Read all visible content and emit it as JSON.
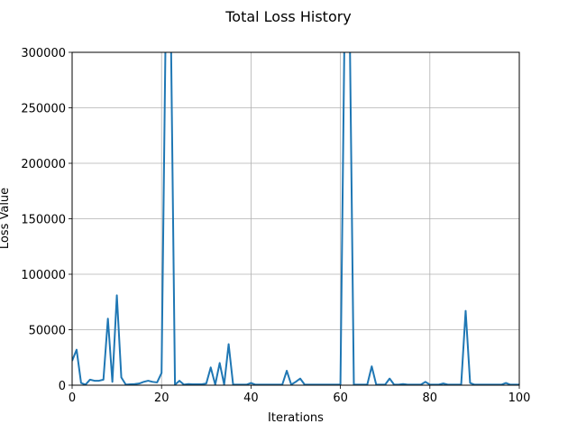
{
  "chart_data": {
    "type": "line",
    "title": "Total Loss History",
    "xlabel": "Iterations",
    "ylabel": "Loss Value",
    "xlim": [
      0,
      100
    ],
    "ylim": [
      0,
      300000
    ],
    "x_ticks": [
      0,
      20,
      40,
      60,
      80,
      100
    ],
    "x_tick_labels": [
      "0",
      "20",
      "40",
      "60",
      "80",
      "100"
    ],
    "y_ticks": [
      0,
      50000,
      100000,
      150000,
      200000,
      250000,
      300000
    ],
    "y_tick_labels": [
      "0",
      "50000",
      "100000",
      "150000",
      "200000",
      "250000",
      "300000"
    ],
    "grid": true,
    "series": [
      {
        "color": "#1f77b4",
        "x": [
          0,
          1,
          2,
          3,
          4,
          5,
          6,
          7,
          8,
          9,
          10,
          11,
          12,
          13,
          14,
          15,
          16,
          17,
          18,
          19,
          20,
          21,
          22,
          23,
          24,
          25,
          26,
          27,
          28,
          29,
          30,
          31,
          32,
          33,
          34,
          35,
          36,
          37,
          38,
          39,
          40,
          41,
          42,
          43,
          44,
          45,
          46,
          47,
          48,
          49,
          50,
          51,
          52,
          53,
          54,
          55,
          56,
          57,
          58,
          59,
          60,
          61,
          62,
          63,
          64,
          65,
          66,
          67,
          68,
          69,
          70,
          71,
          72,
          73,
          74,
          75,
          76,
          77,
          78,
          79,
          80,
          81,
          82,
          83,
          84,
          85,
          86,
          87,
          88,
          89,
          90,
          91,
          92,
          93,
          94,
          95,
          96,
          97,
          98,
          99,
          100
        ],
        "values": [
          22000,
          32000,
          2000,
          500,
          5000,
          4000,
          4000,
          5000,
          60000,
          3000,
          81000,
          7000,
          500,
          800,
          1000,
          1500,
          3000,
          4000,
          3000,
          2500,
          11000,
          350000,
          350000,
          500,
          4000,
          500,
          1000,
          800,
          800,
          800,
          1500,
          16000,
          500,
          20000,
          500,
          37000,
          500,
          500,
          500,
          500,
          2000,
          500,
          500,
          500,
          500,
          500,
          500,
          500,
          13000,
          500,
          3000,
          6000,
          500,
          500,
          500,
          500,
          500,
          500,
          500,
          500,
          500,
          350000,
          350000,
          500,
          500,
          500,
          500,
          17000,
          500,
          500,
          500,
          6000,
          500,
          500,
          1000,
          500,
          500,
          500,
          500,
          3000,
          500,
          500,
          500,
          1500,
          500,
          500,
          500,
          500,
          67000,
          2000,
          500,
          500,
          500,
          500,
          500,
          500,
          500,
          2000,
          500,
          500,
          500
        ]
      }
    ]
  }
}
